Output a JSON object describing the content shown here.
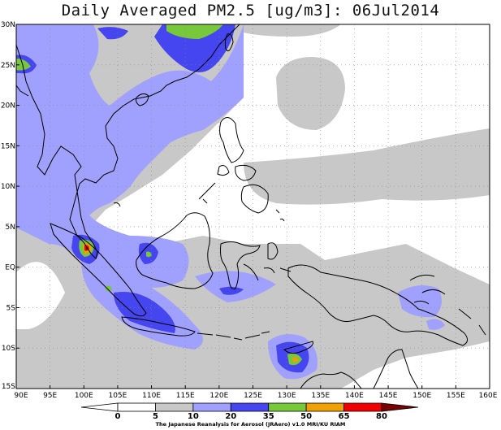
{
  "title": "Daily Averaged PM2.5 [ug/m3]: 06Jul2014",
  "lat_labels": [
    "30N",
    "25N",
    "20N",
    "15N",
    "10N",
    "5N",
    "EQ",
    "5S",
    "10S",
    "15S"
  ],
  "lon_labels": [
    "90E",
    "95E",
    "100E",
    "105E",
    "110E",
    "115E",
    "120E",
    "125E",
    "130E",
    "135E",
    "140E",
    "145E",
    "150E",
    "155E",
    "160E"
  ],
  "legend": {
    "levels": [
      "0",
      "5",
      "10",
      "20",
      "35",
      "50",
      "65",
      "80"
    ],
    "colors": [
      "#ffffff",
      "#ffffff",
      "#c8c8c8",
      "#a0a0ff",
      "#4646f0",
      "#78c83c",
      "#f0a000",
      "#f00000",
      "#780000"
    ]
  },
  "credit": "The Japanese Reanalysis for Aerosol (JRAero) v1.0 MRI/KU RIAM"
}
